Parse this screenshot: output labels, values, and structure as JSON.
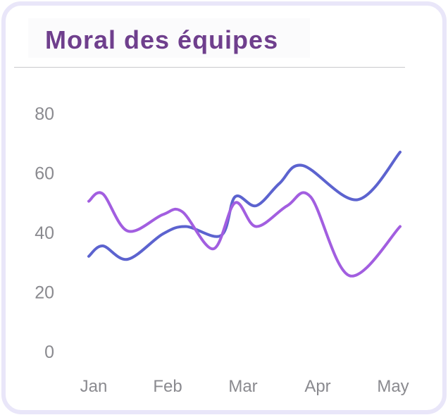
{
  "header": {
    "title": "Moral des équipes"
  },
  "chart_data": {
    "type": "line",
    "title": "Moral des équipes",
    "xlabel": "",
    "ylabel": "",
    "x_tick_labels": [
      "Jan",
      "Feb",
      "Mar",
      "Apr",
      "May"
    ],
    "y_ticks": [
      0,
      20,
      40,
      60,
      80
    ],
    "ylim": [
      0,
      80
    ],
    "xlim": [
      0,
      4
    ],
    "grid": false,
    "series": [
      {
        "color": "#5c63cf",
        "points": [
          [
            0.0,
            32
          ],
          [
            0.18,
            35.5
          ],
          [
            0.5,
            31
          ],
          [
            0.95,
            39.5
          ],
          [
            1.25,
            42
          ],
          [
            1.7,
            39
          ],
          [
            1.88,
            52
          ],
          [
            2.15,
            49
          ],
          [
            2.45,
            56.5
          ],
          [
            2.75,
            62.5
          ],
          [
            3.45,
            51
          ],
          [
            4.0,
            67
          ]
        ]
      },
      {
        "color": "#a25ee0",
        "points": [
          [
            0.0,
            50.5
          ],
          [
            0.18,
            53
          ],
          [
            0.5,
            40.5
          ],
          [
            0.95,
            46
          ],
          [
            1.2,
            47
          ],
          [
            1.6,
            34.5
          ],
          [
            1.88,
            50
          ],
          [
            2.15,
            42
          ],
          [
            2.55,
            49
          ],
          [
            2.85,
            52
          ],
          [
            3.35,
            25.5
          ],
          [
            4.0,
            42
          ]
        ]
      }
    ]
  }
}
